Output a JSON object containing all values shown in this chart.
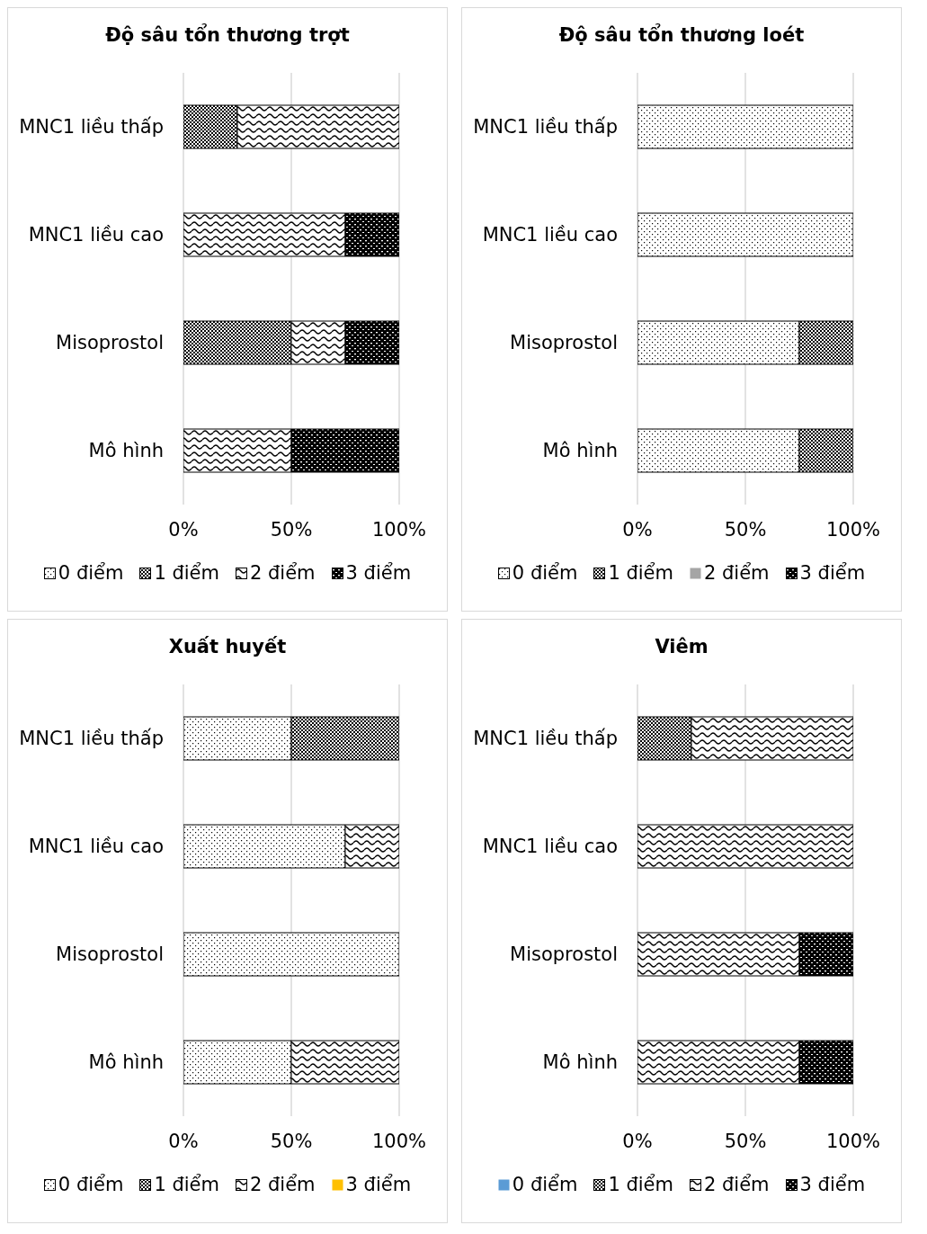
{
  "chart_data": [
    {
      "type": "bar",
      "orientation": "horizontal",
      "stacked": true,
      "title": "Độ sâu tổn thương trợt",
      "categories": [
        "MNC1 liều thấp",
        "MNC1 liều cao",
        "Misoprostol",
        "Mô hình"
      ],
      "series": [
        {
          "name": "0 điểm",
          "color": "#000000",
          "values": [
            0,
            0,
            0,
            0
          ]
        },
        {
          "name": "1 điểm",
          "color": "#000000",
          "values": [
            25,
            0,
            50,
            0
          ]
        },
        {
          "name": "2 điểm",
          "color": "#000000",
          "values": [
            75,
            75,
            25,
            50
          ]
        },
        {
          "name": "3 điểm",
          "color": "#000000",
          "values": [
            0,
            25,
            25,
            50
          ]
        }
      ],
      "xlim": [
        0,
        100
      ],
      "xticks": [
        {
          "value": 0,
          "label": "0%"
        },
        {
          "value": 50,
          "label": "50%"
        },
        {
          "value": 100,
          "label": "100%"
        }
      ],
      "grid": "x",
      "legend": "bottom"
    },
    {
      "type": "bar",
      "orientation": "horizontal",
      "stacked": true,
      "title": "Độ sâu tổn thương loét",
      "categories": [
        "MNC1 liều thấp",
        "MNC1 liều cao",
        "Misoprostol",
        "Mô hình"
      ],
      "series": [
        {
          "name": "0 điểm",
          "color": "#000000",
          "values": [
            100,
            100,
            75,
            75
          ]
        },
        {
          "name": "1 điểm",
          "color": "#000000",
          "values": [
            0,
            0,
            25,
            25
          ]
        },
        {
          "name": "2 điểm",
          "color": "#a5a5a5",
          "values": [
            0,
            0,
            0,
            0
          ]
        },
        {
          "name": "3 điểm",
          "color": "#000000",
          "values": [
            0,
            0,
            0,
            0
          ]
        }
      ],
      "xlim": [
        0,
        100
      ],
      "xticks": [
        {
          "value": 0,
          "label": "0%"
        },
        {
          "value": 50,
          "label": "50%"
        },
        {
          "value": 100,
          "label": "100%"
        }
      ],
      "grid": "x",
      "legend": "bottom"
    },
    {
      "type": "bar",
      "orientation": "horizontal",
      "stacked": true,
      "title": "Xuất huyết",
      "categories": [
        "MNC1 liều thấp",
        "MNC1 liều cao",
        "Misoprostol",
        "Mô hình"
      ],
      "series": [
        {
          "name": "0 điểm",
          "color": "#000000",
          "values": [
            50,
            75,
            100,
            50
          ]
        },
        {
          "name": "1 điểm",
          "color": "#000000",
          "values": [
            50,
            0,
            0,
            0
          ]
        },
        {
          "name": "2 điểm",
          "color": "#000000",
          "values": [
            0,
            25,
            0,
            50
          ]
        },
        {
          "name": "3 điểm",
          "color": "#ffc000",
          "values": [
            0,
            0,
            0,
            0
          ]
        }
      ],
      "xlim": [
        0,
        100
      ],
      "xticks": [
        {
          "value": 0,
          "label": "0%"
        },
        {
          "value": 50,
          "label": "50%"
        },
        {
          "value": 100,
          "label": "100%"
        }
      ],
      "grid": "x",
      "legend": "bottom"
    },
    {
      "type": "bar",
      "orientation": "horizontal",
      "stacked": true,
      "title": "Viêm",
      "categories": [
        "MNC1 liều thấp",
        "MNC1 liều cao",
        "Misoprostol",
        "Mô hình"
      ],
      "series": [
        {
          "name": "0 điểm",
          "color": "#5b9bd5",
          "values": [
            0,
            0,
            0,
            0
          ]
        },
        {
          "name": "1 điểm",
          "color": "#000000",
          "values": [
            25,
            0,
            0,
            0
          ]
        },
        {
          "name": "2 điểm",
          "color": "#000000",
          "values": [
            75,
            100,
            75,
            75
          ]
        },
        {
          "name": "3 điểm",
          "color": "#000000",
          "values": [
            0,
            0,
            25,
            25
          ]
        }
      ],
      "xlim": [
        0,
        100
      ],
      "xticks": [
        {
          "value": 0,
          "label": "0%"
        },
        {
          "value": 50,
          "label": "50%"
        },
        {
          "value": 100,
          "label": "100%"
        }
      ],
      "grid": "x",
      "legend": "bottom"
    }
  ]
}
